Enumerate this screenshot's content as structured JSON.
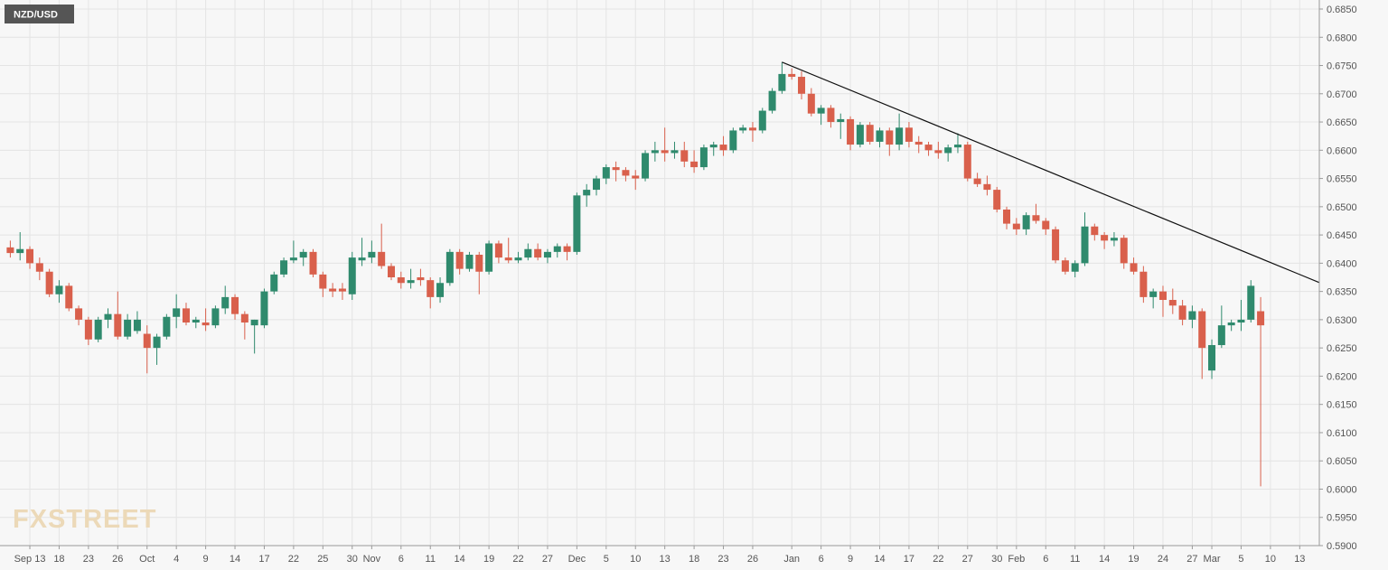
{
  "chart_data": {
    "type": "candlestick",
    "title": "NZD/USD",
    "logo": "FXSTREET",
    "grid": true,
    "up_color": "#2f8a6d",
    "down_color": "#d9604c",
    "trendline_color": "#111111",
    "ylim": [
      0.59,
      0.685
    ],
    "yticks": [
      {
        "value": 0.59,
        "label": "0.5900"
      },
      {
        "value": 0.595,
        "label": "0.5950"
      },
      {
        "value": 0.6,
        "label": "0.6000"
      },
      {
        "value": 0.605,
        "label": "0.6050"
      },
      {
        "value": 0.61,
        "label": "0.6100"
      },
      {
        "value": 0.615,
        "label": "0.6150"
      },
      {
        "value": 0.62,
        "label": "0.6200"
      },
      {
        "value": 0.625,
        "label": "0.6250"
      },
      {
        "value": 0.63,
        "label": "0.6300"
      },
      {
        "value": 0.635,
        "label": "0.6350"
      },
      {
        "value": 0.64,
        "label": "0.6400"
      },
      {
        "value": 0.645,
        "label": "0.6450"
      },
      {
        "value": 0.65,
        "label": "0.6500"
      },
      {
        "value": 0.655,
        "label": "0.6550"
      },
      {
        "value": 0.66,
        "label": "0.6600"
      },
      {
        "value": 0.665,
        "label": "0.6650"
      },
      {
        "value": 0.67,
        "label": "0.6700"
      },
      {
        "value": 0.675,
        "label": "0.6750"
      },
      {
        "value": 0.68,
        "label": "0.6800"
      },
      {
        "value": 0.685,
        "label": "0.6850"
      }
    ],
    "categories": [
      null,
      null,
      "Sep 13",
      null,
      null,
      "18",
      null,
      null,
      "23",
      null,
      null,
      "26",
      null,
      null,
      "Oct",
      null,
      null,
      "4",
      null,
      null,
      "9",
      null,
      null,
      "14",
      null,
      null,
      "17",
      null,
      null,
      "22",
      null,
      null,
      "25",
      null,
      null,
      "30",
      null,
      "Nov",
      null,
      null,
      "6",
      null,
      null,
      "11",
      null,
      null,
      "14",
      null,
      null,
      "19",
      null,
      null,
      "22",
      null,
      null,
      "27",
      null,
      null,
      "Dec",
      null,
      null,
      "5",
      null,
      null,
      "10",
      null,
      null,
      "13",
      null,
      null,
      "18",
      null,
      null,
      "23",
      null,
      null,
      "26",
      null,
      null,
      null,
      "Jan",
      null,
      null,
      "6",
      null,
      null,
      "9",
      null,
      null,
      "14",
      null,
      null,
      "17",
      null,
      null,
      "22",
      null,
      null,
      "27",
      null,
      null,
      "30",
      null,
      "Feb",
      null,
      null,
      "6",
      null,
      null,
      "11",
      null,
      null,
      "14",
      null,
      null,
      "19",
      null,
      null,
      "24",
      null,
      null,
      "27",
      null,
      "Mar",
      null,
      null,
      "5",
      null,
      null,
      "10",
      null,
      null,
      "13"
    ],
    "open": [
      0.6428,
      0.6418,
      0.6425,
      0.64,
      0.6385,
      0.6345,
      0.636,
      0.632,
      0.63,
      0.6265,
      0.63,
      0.631,
      0.627,
      0.628,
      0.6275,
      0.625,
      0.627,
      0.6305,
      0.632,
      0.6295,
      0.6295,
      0.629,
      0.632,
      0.634,
      0.631,
      0.629,
      0.629,
      0.635,
      0.638,
      0.6405,
      0.641,
      0.642,
      0.638,
      0.6355,
      0.6355,
      0.6345,
      0.6405,
      0.641,
      0.642,
      0.6395,
      0.6375,
      0.6365,
      0.6375,
      0.637,
      0.634,
      0.6365,
      0.642,
      0.639,
      0.6415,
      0.6385,
      0.6435,
      0.641,
      0.6405,
      0.641,
      0.6425,
      0.641,
      0.642,
      0.643,
      0.642,
      0.652,
      0.653,
      0.655,
      0.657,
      0.6565,
      0.6555,
      0.655,
      0.6595,
      0.66,
      0.6595,
      0.66,
      0.658,
      0.657,
      0.6605,
      0.661,
      0.66,
      0.6635,
      0.664,
      0.6635,
      0.667,
      0.6705,
      0.6735,
      0.673,
      0.67,
      0.6665,
      0.6675,
      0.665,
      0.6655,
      0.661,
      0.6645,
      0.6615,
      0.6635,
      0.661,
      0.664,
      0.6615,
      0.661,
      0.66,
      0.6595,
      0.6605,
      0.661,
      0.655,
      0.654,
      0.653,
      0.6495,
      0.647,
      0.646,
      0.6485,
      0.6475,
      0.646,
      0.6405,
      0.6385,
      0.64,
      0.6465,
      0.645,
      0.644,
      0.6445,
      0.64,
      0.6385,
      0.634,
      0.635,
      0.6335,
      0.6325,
      0.63,
      0.6315,
      0.621,
      0.6255,
      0.629,
      0.6295,
      0.63,
      0.6315,
      null,
      null,
      null,
      null
    ],
    "high": [
      0.644,
      0.6455,
      0.643,
      0.641,
      0.639,
      0.637,
      0.6365,
      0.6325,
      0.6305,
      0.6305,
      0.632,
      0.635,
      0.631,
      0.6315,
      0.629,
      0.6275,
      0.631,
      0.6345,
      0.633,
      0.6305,
      0.632,
      0.6325,
      0.636,
      0.6345,
      0.6315,
      0.63,
      0.6355,
      0.6385,
      0.641,
      0.644,
      0.6425,
      0.6425,
      0.6385,
      0.6365,
      0.6365,
      0.642,
      0.6445,
      0.644,
      0.647,
      0.64,
      0.6385,
      0.639,
      0.639,
      0.6375,
      0.6375,
      0.6425,
      0.6425,
      0.642,
      0.642,
      0.644,
      0.644,
      0.6445,
      0.642,
      0.6435,
      0.6435,
      0.6425,
      0.6435,
      0.6435,
      0.6525,
      0.654,
      0.6555,
      0.6575,
      0.658,
      0.657,
      0.6565,
      0.66,
      0.6615,
      0.664,
      0.6615,
      0.6615,
      0.66,
      0.661,
      0.6615,
      0.6625,
      0.664,
      0.6645,
      0.665,
      0.6675,
      0.671,
      0.6756,
      0.6745,
      0.674,
      0.671,
      0.668,
      0.668,
      0.6665,
      0.666,
      0.665,
      0.665,
      0.664,
      0.664,
      0.6665,
      0.665,
      0.6625,
      0.6615,
      0.6615,
      0.661,
      0.663,
      0.6615,
      0.656,
      0.6555,
      0.6535,
      0.65,
      0.648,
      0.649,
      0.6505,
      0.648,
      0.6465,
      0.641,
      0.6405,
      0.649,
      0.647,
      0.6455,
      0.6455,
      0.645,
      0.641,
      0.6395,
      0.6355,
      0.636,
      0.6355,
      0.6335,
      0.6325,
      0.632,
      0.6265,
      0.6325,
      0.63,
      0.6335,
      0.637,
      0.634,
      null,
      null,
      null,
      null
    ],
    "low": [
      0.641,
      0.6405,
      0.639,
      0.637,
      0.634,
      0.633,
      0.6315,
      0.629,
      0.6255,
      0.626,
      0.6285,
      0.6265,
      0.6265,
      0.6275,
      0.6205,
      0.622,
      0.6265,
      0.6285,
      0.629,
      0.6285,
      0.628,
      0.6285,
      0.631,
      0.63,
      0.6265,
      0.624,
      0.6285,
      0.6345,
      0.6375,
      0.64,
      0.6395,
      0.6375,
      0.634,
      0.634,
      0.6335,
      0.6335,
      0.6395,
      0.64,
      0.639,
      0.637,
      0.6355,
      0.6355,
      0.636,
      0.632,
      0.633,
      0.636,
      0.638,
      0.6385,
      0.6345,
      0.638,
      0.64,
      0.64,
      0.64,
      0.6405,
      0.6405,
      0.64,
      0.641,
      0.6405,
      0.6415,
      0.65,
      0.652,
      0.654,
      0.6545,
      0.6545,
      0.653,
      0.6545,
      0.658,
      0.658,
      0.6585,
      0.657,
      0.656,
      0.6565,
      0.659,
      0.659,
      0.6595,
      0.663,
      0.6615,
      0.663,
      0.6665,
      0.67,
      0.6725,
      0.669,
      0.666,
      0.6645,
      0.664,
      0.662,
      0.66,
      0.6605,
      0.661,
      0.6605,
      0.659,
      0.66,
      0.6605,
      0.6595,
      0.659,
      0.6585,
      0.658,
      0.6595,
      0.6545,
      0.6535,
      0.652,
      0.649,
      0.646,
      0.645,
      0.645,
      0.647,
      0.645,
      0.64,
      0.638,
      0.6375,
      0.6395,
      0.644,
      0.6425,
      0.643,
      0.639,
      0.638,
      0.633,
      0.632,
      0.6305,
      0.631,
      0.629,
      0.6285,
      0.6195,
      0.6195,
      0.625,
      0.628,
      0.628,
      0.6295,
      0.6005,
      null,
      null,
      null,
      null
    ],
    "close": [
      0.6418,
      0.6425,
      0.64,
      0.6385,
      0.6345,
      0.636,
      0.632,
      0.63,
      0.6265,
      0.63,
      0.631,
      0.627,
      0.63,
      0.63,
      0.625,
      0.627,
      0.6305,
      0.632,
      0.6295,
      0.63,
      0.629,
      0.632,
      0.634,
      0.631,
      0.6295,
      0.63,
      0.635,
      0.638,
      0.6405,
      0.641,
      0.642,
      0.638,
      0.6355,
      0.635,
      0.635,
      0.641,
      0.641,
      0.642,
      0.6395,
      0.6375,
      0.6365,
      0.637,
      0.637,
      0.634,
      0.6365,
      0.642,
      0.639,
      0.6415,
      0.6385,
      0.6435,
      0.641,
      0.6405,
      0.641,
      0.6425,
      0.641,
      0.642,
      0.643,
      0.642,
      0.652,
      0.653,
      0.655,
      0.657,
      0.6565,
      0.6555,
      0.655,
      0.6595,
      0.66,
      0.6595,
      0.66,
      0.658,
      0.657,
      0.6605,
      0.661,
      0.66,
      0.6635,
      0.664,
      0.6635,
      0.667,
      0.6705,
      0.6735,
      0.673,
      0.67,
      0.6665,
      0.6675,
      0.665,
      0.6655,
      0.661,
      0.6645,
      0.6615,
      0.6635,
      0.661,
      0.664,
      0.6615,
      0.661,
      0.66,
      0.6595,
      0.6605,
      0.661,
      0.655,
      0.654,
      0.653,
      0.6495,
      0.647,
      0.646,
      0.6485,
      0.6475,
      0.646,
      0.6405,
      0.6385,
      0.64,
      0.6465,
      0.645,
      0.644,
      0.6445,
      0.64,
      0.6385,
      0.634,
      0.635,
      0.6335,
      0.6325,
      0.63,
      0.6315,
      0.625,
      0.6255,
      0.629,
      0.6295,
      0.63,
      0.636,
      0.629,
      null,
      null,
      null,
      null
    ],
    "trendline": [
      null,
      null,
      null,
      null,
      null,
      null,
      null,
      null,
      null,
      null,
      null,
      null,
      null,
      null,
      null,
      null,
      null,
      null,
      null,
      null,
      null,
      null,
      null,
      null,
      null,
      null,
      null,
      null,
      null,
      null,
      null,
      null,
      null,
      null,
      null,
      null,
      null,
      null,
      null,
      null,
      null,
      null,
      null,
      null,
      null,
      null,
      null,
      null,
      null,
      null,
      null,
      null,
      null,
      null,
      null,
      null,
      null,
      null,
      null,
      null,
      null,
      null,
      null,
      null,
      null,
      null,
      null,
      null,
      null,
      null,
      null,
      null,
      null,
      null,
      null,
      null,
      null,
      null,
      null,
      0.6756,
      null,
      null,
      null,
      null,
      null,
      null,
      null,
      null,
      null,
      null,
      null,
      null,
      null,
      null,
      null,
      null,
      null,
      null,
      null,
      null,
      null,
      null,
      null,
      null,
      null,
      null,
      null,
      null,
      null,
      null,
      null,
      null,
      null,
      null,
      null,
      null,
      null,
      null,
      null,
      null,
      null,
      null,
      null,
      null,
      null,
      null,
      null,
      null,
      null,
      null,
      null,
      null,
      0.638
    ]
  }
}
